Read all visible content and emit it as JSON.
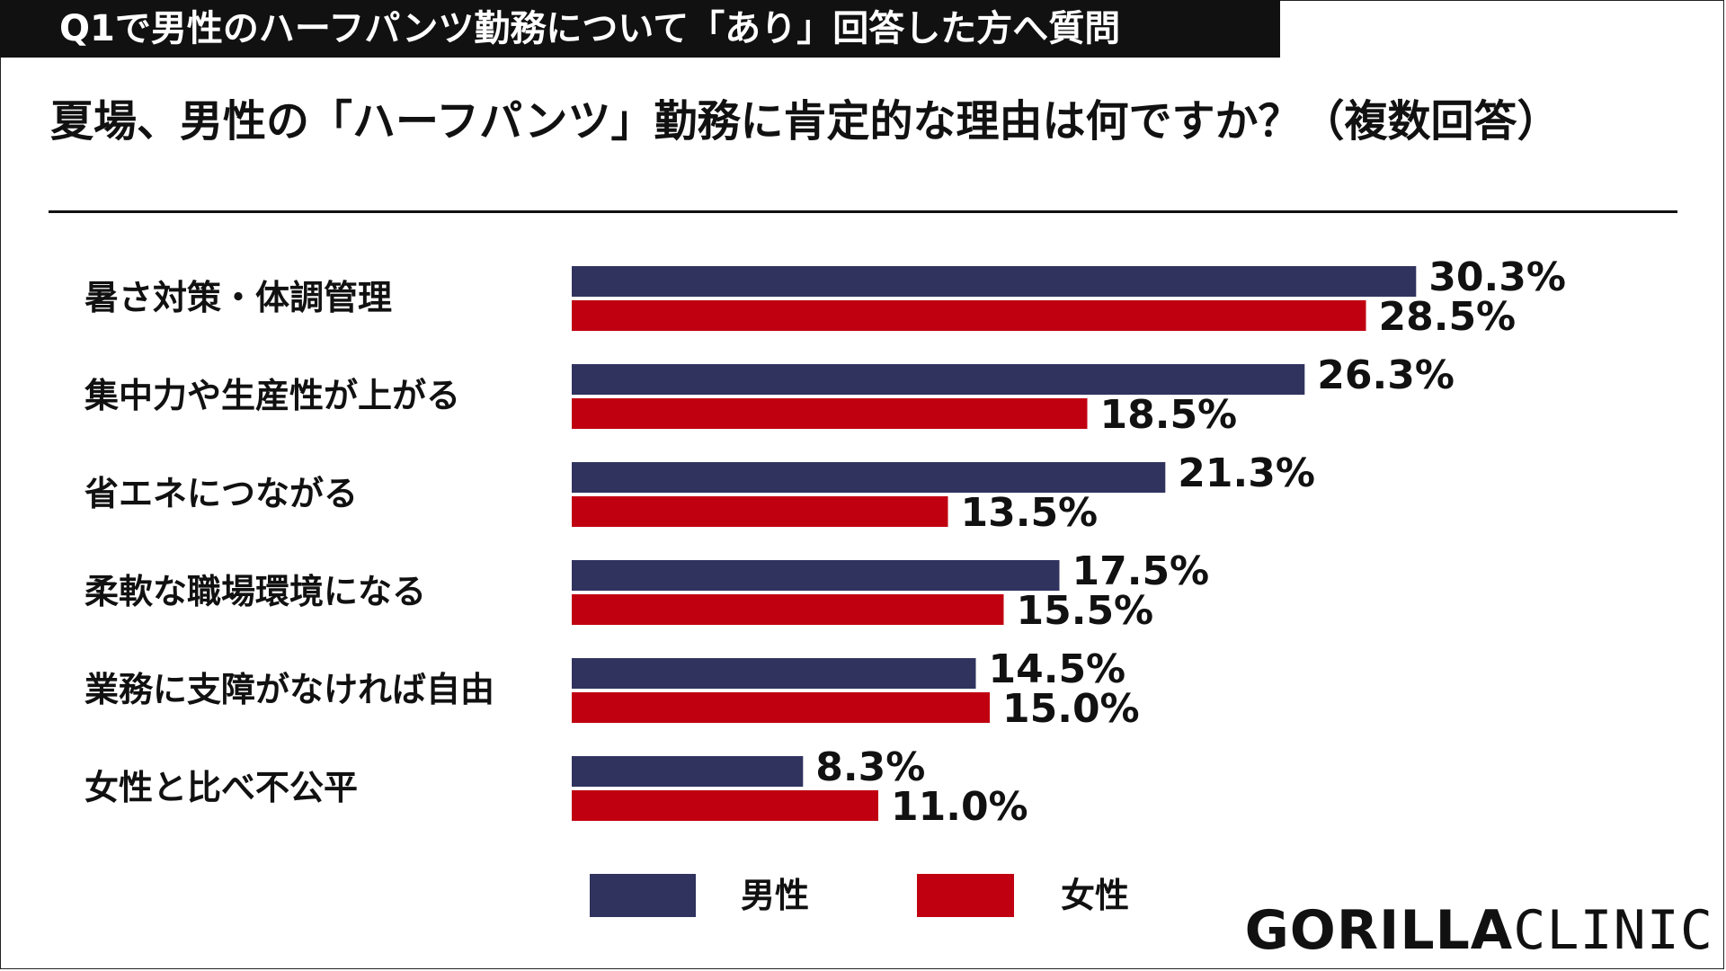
{
  "header": {
    "band_text": "Q1で男性のハーフパンツ勤務について「あり」回答した方へ質問",
    "question": "夏場、男性の「ハーフパンツ」勤務に肯定的な理由は何ですか？（複数回答）"
  },
  "legend": {
    "male_label": "男性",
    "female_label": "女性"
  },
  "logo": {
    "part1": "GORILLA",
    "part2": "CLINIC"
  },
  "colors": {
    "male": "#30335e",
    "female": "#c00010",
    "header_band": "#111111"
  },
  "chart_data": {
    "type": "bar",
    "orientation": "horizontal",
    "categories": [
      "暑さ対策・体調管理",
      "集中力や生産性が上がる",
      "省エネにつながる",
      "柔軟な職場環境になる",
      "業務に支障がなければ自由",
      "女性と比べ不公平"
    ],
    "series": [
      {
        "name": "男性",
        "values": [
          30.3,
          26.3,
          21.3,
          17.5,
          14.5,
          8.3
        ],
        "labels": [
          "30.3%",
          "26.3%",
          "21.3%",
          "17.5%",
          "14.5%",
          "8.3%"
        ]
      },
      {
        "name": "女性",
        "values": [
          28.5,
          18.5,
          13.5,
          15.5,
          15.0,
          11.0
        ],
        "labels": [
          "28.5%",
          "18.5%",
          "13.5%",
          "15.5%",
          "15.0%",
          "11.0%"
        ]
      }
    ],
    "xlim": [
      0,
      40
    ],
    "grid": false,
    "legend_position": "bottom"
  }
}
